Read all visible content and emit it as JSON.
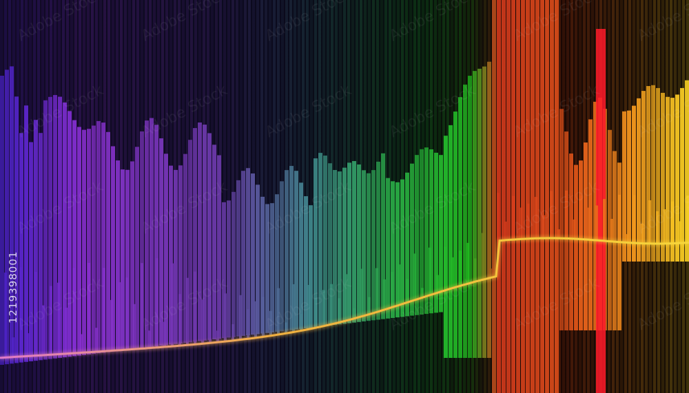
{
  "watermark": {
    "stock_id": "1219398001",
    "brand": "Adobe Stock"
  },
  "palette": {
    "violet": "#6f2fc8",
    "purple": "#9a3ad8",
    "teal": "#3f8f88",
    "green": "#22c22a",
    "red": "#d63a1c",
    "orange": "#f07a1a",
    "yellow": "#f5c81e",
    "curve": "#f2b630"
  },
  "icons": [
    "adobe-stock-watermark-icon"
  ]
}
